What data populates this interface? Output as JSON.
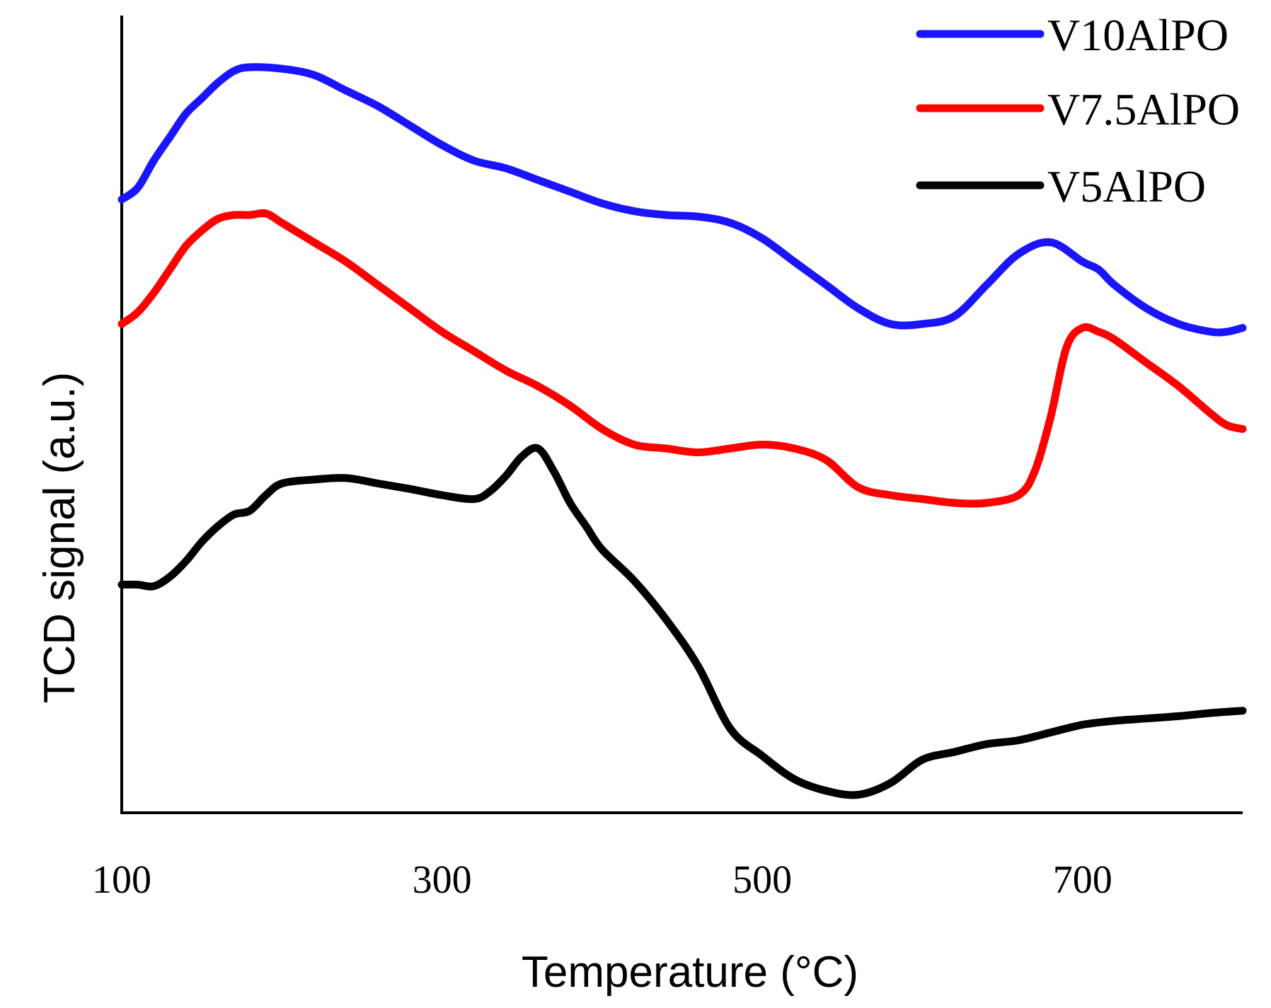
{
  "chart_data": {
    "type": "line",
    "title": "",
    "xlabel": "Temperature (°C)",
    "ylabel": "TCD signal (a.u.)",
    "xlim": [
      100,
      800
    ],
    "ylim": [
      0,
      100
    ],
    "xticks": [
      100,
      300,
      500,
      700
    ],
    "grid": false,
    "legend_position": "top-right",
    "y_axis_ticks": "none",
    "series": [
      {
        "name": "V10AlPO",
        "color": "#1a14ff",
        "x": [
          100,
          110,
          120,
          130,
          140,
          150,
          160,
          170,
          180,
          200,
          220,
          240,
          260,
          280,
          300,
          320,
          340,
          360,
          380,
          400,
          420,
          440,
          460,
          480,
          500,
          520,
          540,
          560,
          580,
          600,
          620,
          640,
          660,
          680,
          700,
          710,
          720,
          740,
          760,
          780,
          790,
          800
        ],
        "y": [
          78,
          79.5,
          83,
          86,
          89,
          91,
          93,
          94.5,
          95,
          94.8,
          94,
          92,
          90,
          87.5,
          85,
          83,
          82,
          80.5,
          79,
          77.5,
          76.5,
          76,
          75.8,
          75,
          73,
          70,
          67,
          64,
          62,
          62,
          63,
          67,
          71,
          72.5,
          70,
          69,
          67,
          64,
          62,
          61,
          61,
          61.5
        ]
      },
      {
        "name": "V7.5AlPO",
        "color": "#ff0000",
        "x": [
          100,
          110,
          120,
          130,
          140,
          150,
          160,
          170,
          180,
          190,
          200,
          220,
          240,
          260,
          280,
          300,
          320,
          340,
          360,
          380,
          400,
          420,
          440,
          460,
          480,
          500,
          520,
          540,
          560,
          580,
          600,
          620,
          640,
          660,
          670,
          680,
          690,
          700,
          710,
          720,
          740,
          760,
          780,
          790,
          800
        ],
        "y": [
          62,
          63.5,
          66,
          69,
          72,
          74,
          75.5,
          76,
          76,
          76.2,
          75,
          72.5,
          70,
          67,
          64,
          61,
          58.5,
          56,
          54,
          51.5,
          48.5,
          46.5,
          46,
          45.5,
          46,
          46.5,
          46,
          44.5,
          41,
          40,
          39.5,
          39,
          39,
          40,
          43,
          50,
          59,
          61.5,
          61,
          60,
          57,
          54,
          50.5,
          49,
          48.5
        ]
      },
      {
        "name": "V5AlPO",
        "color": "#000000",
        "x": [
          100,
          110,
          120,
          130,
          140,
          150,
          160,
          170,
          180,
          190,
          200,
          220,
          240,
          260,
          280,
          300,
          320,
          330,
          340,
          350,
          360,
          370,
          380,
          390,
          400,
          420,
          440,
          460,
          480,
          500,
          520,
          540,
          560,
          580,
          600,
          620,
          640,
          660,
          680,
          700,
          720,
          740,
          760,
          780,
          800
        ],
        "y": [
          28.5,
          28.5,
          28.3,
          29.5,
          31.5,
          34,
          36,
          37.5,
          38,
          40,
          41.5,
          42,
          42.2,
          41.5,
          40.8,
          40,
          39.5,
          40.5,
          42.5,
          45,
          46,
          43,
          39,
          36,
          33,
          29,
          24,
          18,
          10,
          6.5,
          3.5,
          2,
          1.5,
          3,
          6,
          7,
          8,
          8.5,
          9.5,
          10.5,
          11,
          11.3,
          11.6,
          12,
          12.3
        ]
      }
    ]
  }
}
